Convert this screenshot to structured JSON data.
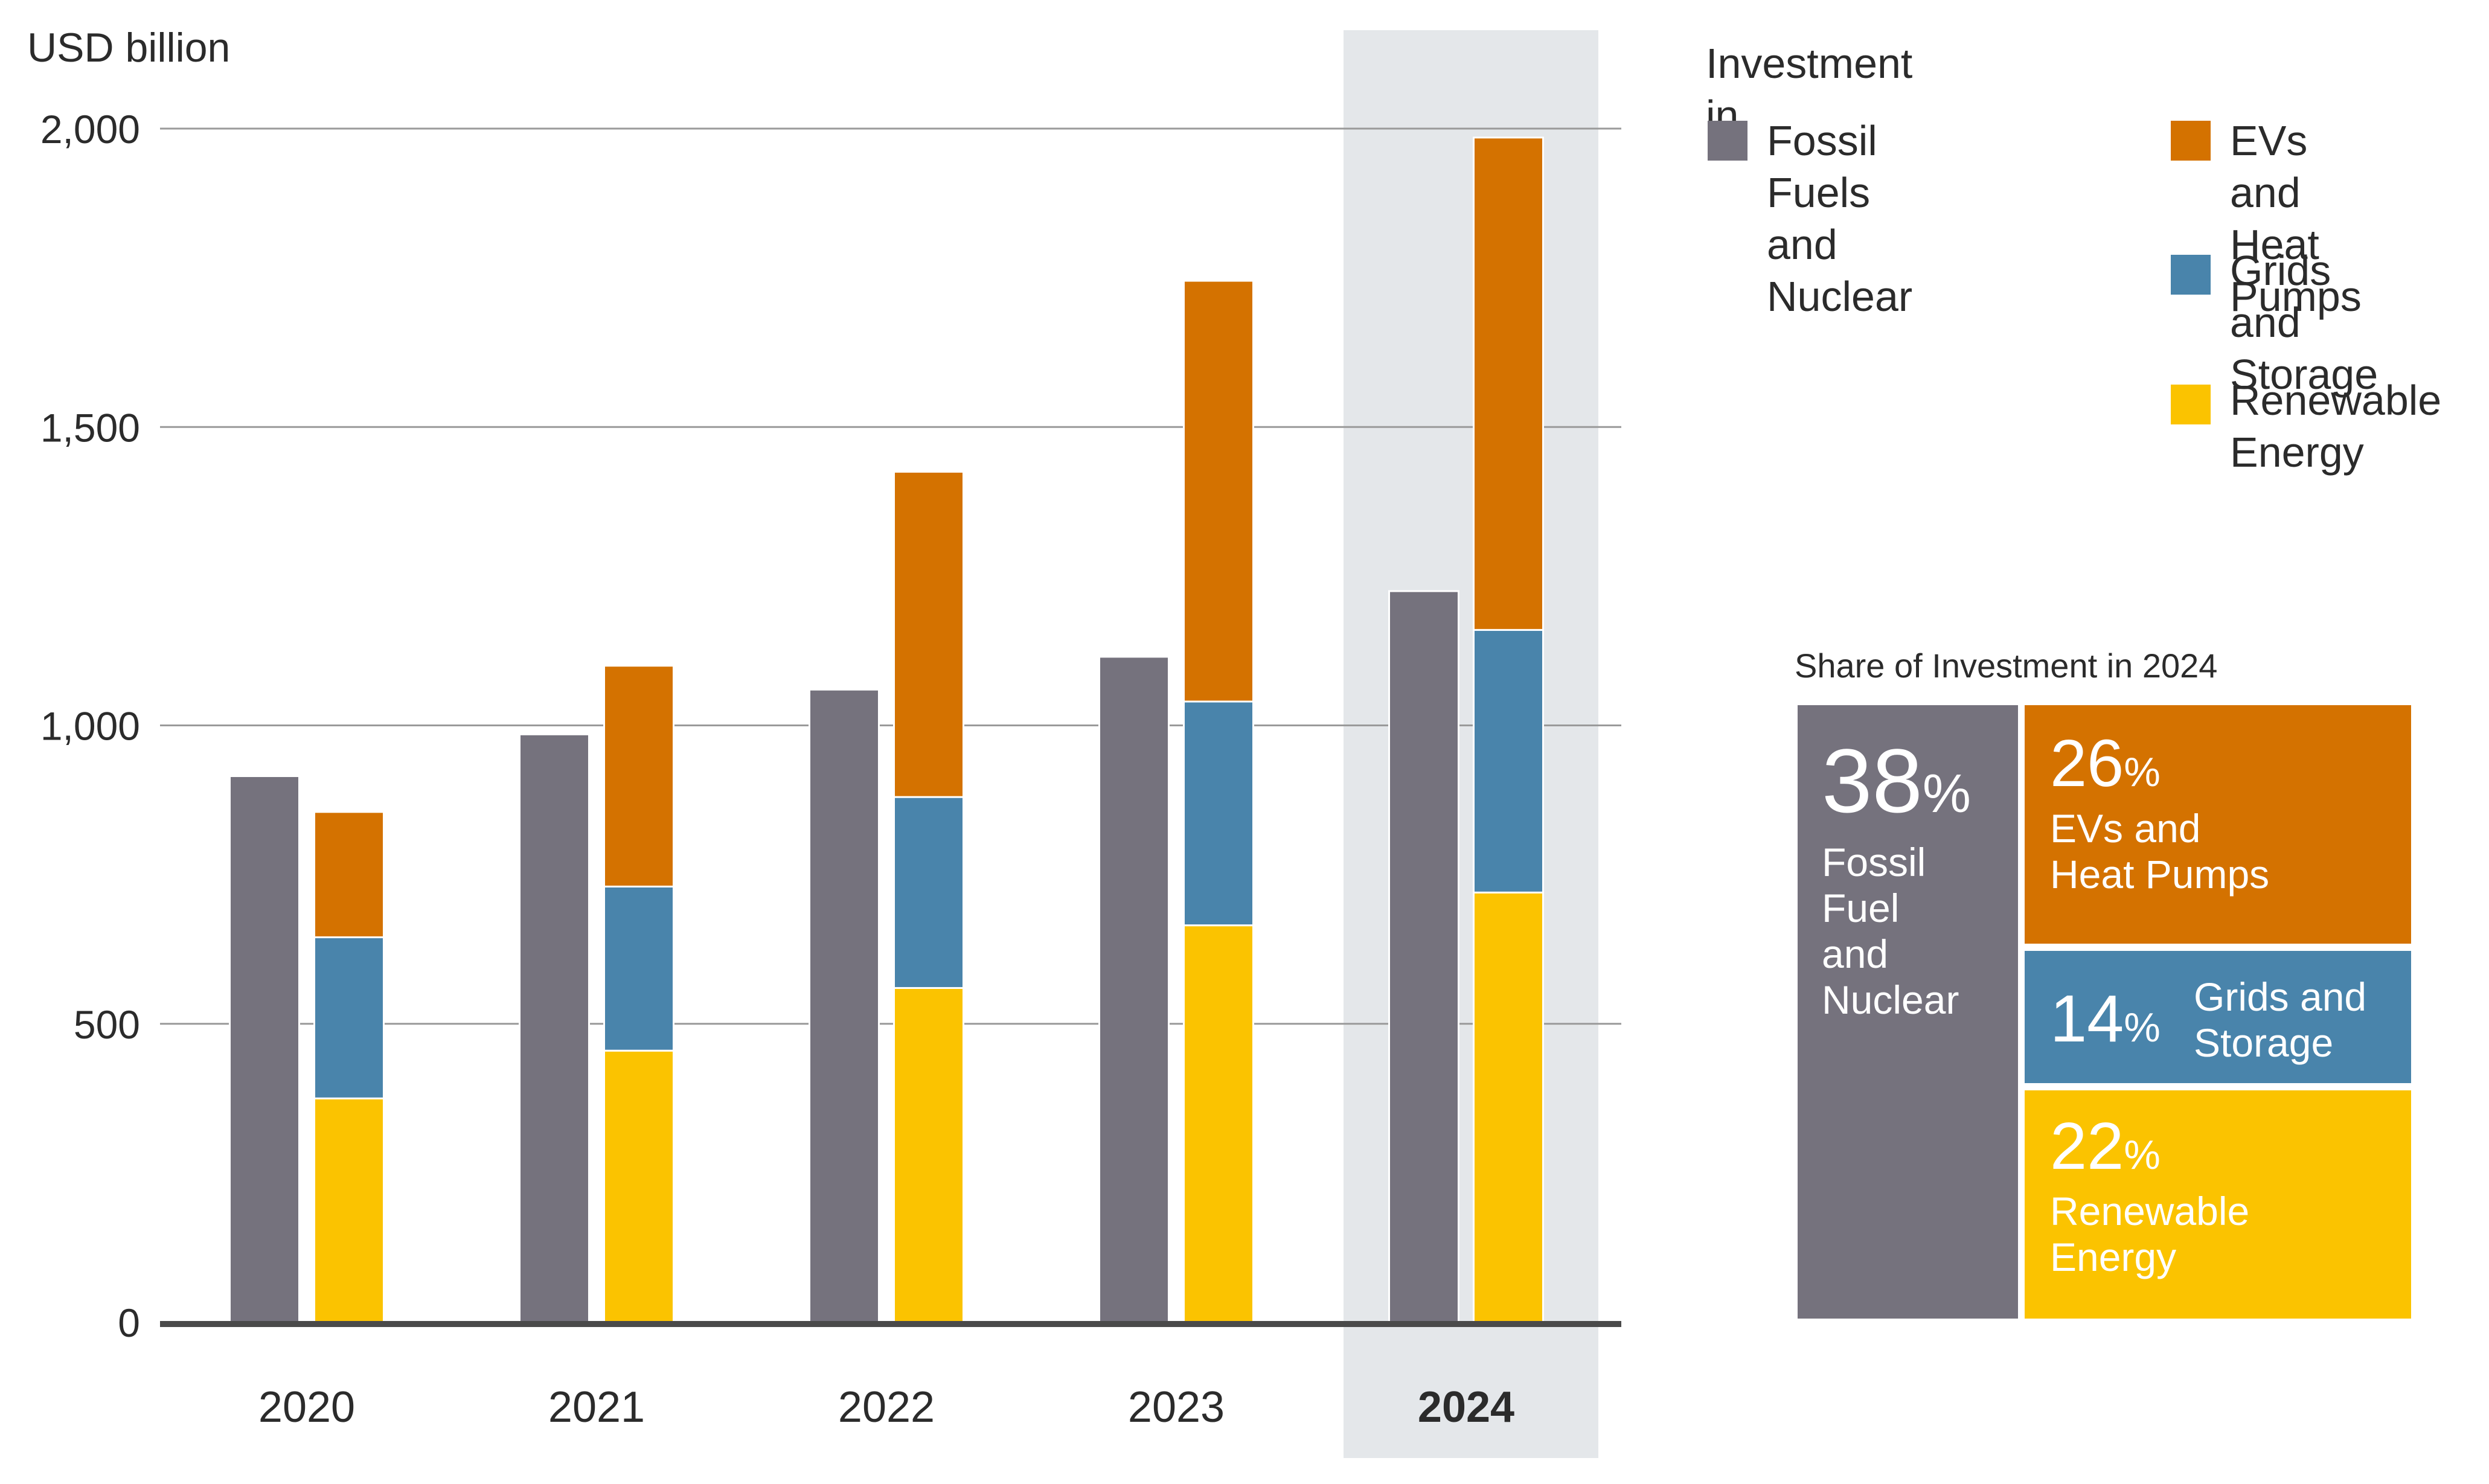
{
  "chart_data": {
    "type": "bar",
    "subtype": "grouped-stacked",
    "ylabel": "USD billion",
    "ylim": [
      0,
      2000
    ],
    "yticks": [
      0,
      500,
      1000,
      1500,
      2000
    ],
    "ytick_labels": [
      "0",
      "500",
      "1,000",
      "1,500",
      "2,000"
    ],
    "categories": [
      "2020",
      "2021",
      "2022",
      "2023",
      "2024"
    ],
    "highlight_category": "2024",
    "legend_title": "Investment in",
    "series": [
      {
        "name": "Fossil Fuels\nand Nuclear",
        "key": "fossil",
        "stack": "fossil",
        "color": "#75727d",
        "values": [
          915,
          985,
          1060,
          1115,
          1225
        ]
      },
      {
        "name": "Renewable\nEnergy",
        "key": "renew",
        "stack": "clean",
        "color": "#fbc300",
        "values": [
          375,
          455,
          560,
          665,
          720
        ]
      },
      {
        "name": "Grids and\nStorage",
        "key": "grids",
        "stack": "clean",
        "color": "#4984ab",
        "values": [
          270,
          275,
          320,
          375,
          440
        ]
      },
      {
        "name": "EVs and\nHeat Pumps",
        "key": "evs",
        "stack": "clean",
        "color": "#d47200",
        "values": [
          210,
          370,
          545,
          705,
          825
        ]
      }
    ]
  },
  "share_panel": {
    "title": "Share of Investment in 2024",
    "items": [
      {
        "key": "fossil",
        "pct": "38",
        "label": "Fossil\nFuel\nand\nNuclear",
        "color": "#75727d"
      },
      {
        "key": "evs",
        "pct": "26",
        "label": "EVs and\nHeat Pumps",
        "color": "#d47200"
      },
      {
        "key": "grids",
        "pct": "14",
        "label": "Grids and\nStorage",
        "color": "#4984ab"
      },
      {
        "key": "renew",
        "pct": "22",
        "label": "Renewable\nEnergy",
        "color": "#fbc300"
      }
    ],
    "pct_sign": "%"
  }
}
